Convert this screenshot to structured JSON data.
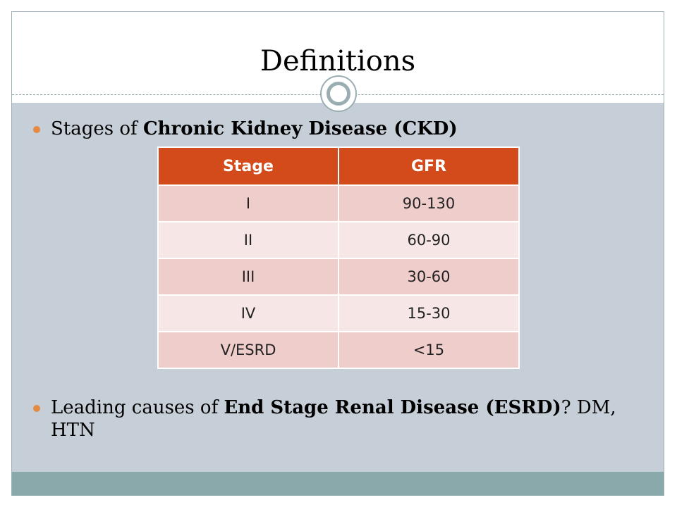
{
  "slide": {
    "title": "Definitions",
    "bullets": [
      {
        "prefix": "Stages of ",
        "bold": "Chronic Kidney Disease (CKD)",
        "suffix": ""
      },
      {
        "prefix": "Leading causes of ",
        "bold": "End Stage Renal Disease (ESRD)",
        "suffix": "? DM, HTN"
      }
    ]
  },
  "table": {
    "headers": [
      "Stage",
      "GFR"
    ],
    "rows": [
      [
        "I",
        "90-130"
      ],
      [
        "II",
        "60-90"
      ],
      [
        "III",
        "30-60"
      ],
      [
        "IV",
        "15-30"
      ],
      [
        "V/ESRD",
        "<15"
      ]
    ]
  },
  "colors": {
    "header_bg": "#d34a1b",
    "row_odd": "#efcdcb",
    "row_even": "#f7e6e6",
    "content_bg": "#c6cfd7",
    "footer_band": "#8aa9ab",
    "bullet_dot": "#e48a43"
  },
  "icons": {
    "ornament": "double-circle-ornament",
    "bullet": "bullet-dot"
  }
}
